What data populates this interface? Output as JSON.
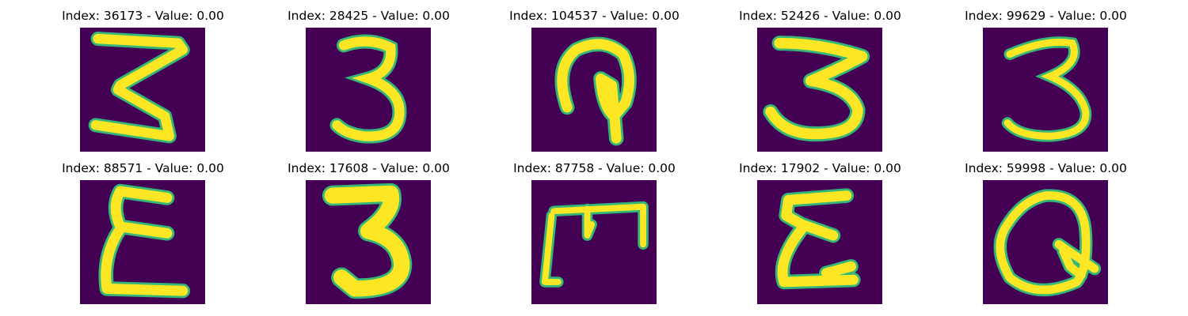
{
  "colors": {
    "background": "#440154",
    "stroke": "#fde725",
    "edge": "#35b779",
    "edge_dark": "#21918c"
  },
  "panels": [
    {
      "title": "Index: 36173 - Value: 0.00",
      "glyph": "digit-3-sharp"
    },
    {
      "title": "Index: 28425 - Value: 0.00",
      "glyph": "digit-3-round"
    },
    {
      "title": "Index: 104537 - Value: 0.00",
      "glyph": "loop-hook"
    },
    {
      "title": "Index: 52426 - Value: 0.00",
      "glyph": "digit-3-wide"
    },
    {
      "title": "Index: 99629 - Value: 0.00",
      "glyph": "digit-3-thin"
    },
    {
      "title": "Index: 88571 - Value: 0.00",
      "glyph": "epsilon-shape"
    },
    {
      "title": "Index: 17608 - Value: 0.00",
      "glyph": "digit-3-bold"
    },
    {
      "title": "Index: 87758 - Value: 0.00",
      "glyph": "m-bracket-shape"
    },
    {
      "title": "Index: 17902 - Value: 0.00",
      "glyph": "epsilon-tail"
    },
    {
      "title": "Index: 59998 - Value: 0.00",
      "glyph": "q-loop-shape"
    }
  ]
}
